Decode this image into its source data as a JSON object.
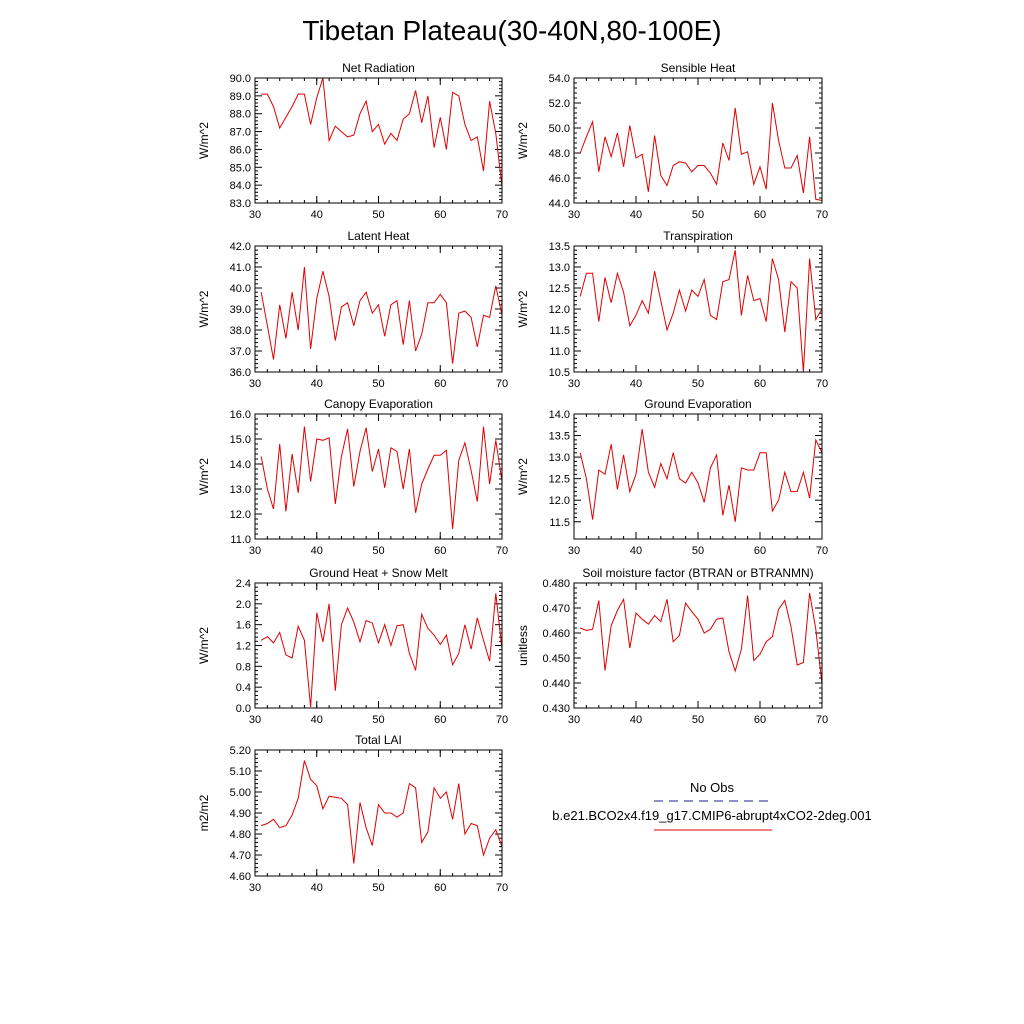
{
  "title": "Tibetan Plateau(30-40N,80-100E)",
  "legend": {
    "entries": [
      {
        "label": "No Obs",
        "color": "#1f1f8f",
        "style": "dashed"
      },
      {
        "label": "b.e21.BCO2x4.f19_g17.CMIP6-abrupt4xCO2-2deg.001",
        "color": "#e00000",
        "style": "solid"
      }
    ]
  },
  "chart_data": [
    {
      "type": "line",
      "title": "Net Radiation",
      "ylabel": "W/m^2",
      "xlim": [
        30,
        70
      ],
      "ylim": [
        83,
        90
      ],
      "xticks": [
        30,
        40,
        50,
        60,
        70
      ],
      "yticks": [
        "83.0",
        "84.0",
        "85.0",
        "86.0",
        "87.0",
        "88.0",
        "89.0",
        "90.0"
      ],
      "series": [
        {
          "color": "#e00000",
          "x": [
            31,
            32,
            33,
            34,
            35,
            36,
            37,
            38,
            39,
            40,
            41,
            42,
            43,
            44,
            45,
            46,
            47,
            48,
            49,
            50,
            51,
            52,
            53,
            54,
            55,
            56,
            57,
            58,
            59,
            60,
            61,
            62,
            63,
            64,
            65,
            66,
            67,
            68,
            69,
            70
          ],
          "values": [
            89.1,
            89.1,
            88.4,
            87.2,
            87.8,
            88.4,
            89.1,
            89.1,
            87.4,
            88.9,
            90.0,
            86.5,
            87.3,
            87.0,
            86.7,
            86.8,
            88.0,
            88.7,
            87.0,
            87.4,
            86.3,
            86.9,
            86.5,
            87.7,
            88.0,
            89.3,
            87.5,
            89.0,
            86.1,
            87.8,
            86.0,
            89.2,
            89.0,
            87.4,
            86.5,
            86.7,
            84.8,
            88.7,
            86.9,
            83.9
          ]
        }
      ]
    },
    {
      "type": "line",
      "title": "Sensible Heat",
      "ylabel": "W/m^2",
      "xlim": [
        30,
        70
      ],
      "ylim": [
        44,
        54
      ],
      "xticks": [
        30,
        40,
        50,
        60,
        70
      ],
      "yticks": [
        "44.0",
        "46.0",
        "48.0",
        "50.0",
        "52.0",
        "54.0"
      ],
      "series": [
        {
          "color": "#e00000",
          "x": [
            31,
            32,
            33,
            34,
            35,
            36,
            37,
            38,
            39,
            40,
            41,
            42,
            43,
            44,
            45,
            46,
            47,
            48,
            49,
            50,
            51,
            52,
            53,
            54,
            55,
            56,
            57,
            58,
            59,
            60,
            61,
            62,
            63,
            64,
            65,
            66,
            67,
            68,
            69,
            70
          ],
          "values": [
            48.0,
            49.3,
            50.5,
            46.5,
            49.3,
            47.7,
            49.6,
            46.9,
            50.2,
            47.6,
            47.9,
            44.9,
            49.4,
            46.2,
            45.4,
            47.0,
            47.3,
            47.2,
            46.5,
            47.0,
            47.0,
            46.4,
            45.5,
            48.8,
            47.4,
            51.6,
            47.9,
            48.1,
            45.5,
            46.9,
            45.1,
            52.0,
            49.0,
            46.8,
            46.8,
            47.8,
            44.8,
            49.3,
            44.3,
            44.2
          ]
        }
      ]
    },
    {
      "type": "line",
      "title": "Latent Heat",
      "ylabel": "W/m^2",
      "xlim": [
        30,
        70
      ],
      "ylim": [
        36,
        42
      ],
      "xticks": [
        30,
        40,
        50,
        60,
        70
      ],
      "yticks": [
        "36.0",
        "37.0",
        "38.0",
        "39.0",
        "40.0",
        "41.0",
        "42.0"
      ],
      "series": [
        {
          "color": "#e00000",
          "x": [
            31,
            32,
            33,
            34,
            35,
            36,
            37,
            38,
            39,
            40,
            41,
            42,
            43,
            44,
            45,
            46,
            47,
            48,
            49,
            50,
            51,
            52,
            53,
            54,
            55,
            56,
            57,
            58,
            59,
            60,
            61,
            62,
            63,
            64,
            65,
            66,
            67,
            68,
            69,
            70
          ],
          "values": [
            39.8,
            38.2,
            36.6,
            39.2,
            37.6,
            39.8,
            38.0,
            41.0,
            37.1,
            39.5,
            40.8,
            39.6,
            37.5,
            39.1,
            39.3,
            38.2,
            39.4,
            39.8,
            38.8,
            39.2,
            37.7,
            39.2,
            39.4,
            37.3,
            39.4,
            37.0,
            37.8,
            39.3,
            39.3,
            39.7,
            39.3,
            36.4,
            38.8,
            38.9,
            38.6,
            37.2,
            38.7,
            38.6,
            40.1,
            38.7
          ]
        }
      ]
    },
    {
      "type": "line",
      "title": "Transpiration",
      "ylabel": "W/m^2",
      "xlim": [
        30,
        70
      ],
      "ylim": [
        10.5,
        13.5
      ],
      "xticks": [
        30,
        40,
        50,
        60,
        70
      ],
      "yticks": [
        "10.5",
        "11.0",
        "11.5",
        "12.0",
        "12.5",
        "13.0",
        "13.5"
      ],
      "series": [
        {
          "color": "#e00000",
          "x": [
            31,
            32,
            33,
            34,
            35,
            36,
            37,
            38,
            39,
            40,
            41,
            42,
            43,
            44,
            45,
            46,
            47,
            48,
            49,
            50,
            51,
            52,
            53,
            54,
            55,
            56,
            57,
            58,
            59,
            60,
            61,
            62,
            63,
            64,
            65,
            66,
            67,
            68,
            69,
            70
          ],
          "values": [
            12.3,
            12.85,
            12.85,
            11.7,
            12.75,
            12.15,
            12.85,
            12.4,
            11.6,
            11.85,
            12.2,
            11.9,
            12.9,
            12.2,
            11.5,
            11.9,
            12.45,
            11.95,
            12.45,
            12.3,
            12.7,
            11.85,
            11.75,
            12.65,
            12.7,
            13.4,
            11.85,
            12.8,
            12.2,
            12.25,
            11.7,
            13.2,
            12.7,
            11.45,
            12.65,
            12.5,
            10.5,
            13.2,
            11.75,
            12.0
          ]
        }
      ]
    },
    {
      "type": "line",
      "title": "Canopy Evaporation",
      "ylabel": "W/m^2",
      "xlim": [
        30,
        70
      ],
      "ylim": [
        11,
        16
      ],
      "xticks": [
        30,
        40,
        50,
        60,
        70
      ],
      "yticks": [
        "11.0",
        "12.0",
        "13.0",
        "14.0",
        "15.0",
        "16.0"
      ],
      "series": [
        {
          "color": "#e00000",
          "x": [
            31,
            32,
            33,
            34,
            35,
            36,
            37,
            38,
            39,
            40,
            41,
            42,
            43,
            44,
            45,
            46,
            47,
            48,
            49,
            50,
            51,
            52,
            53,
            54,
            55,
            56,
            57,
            58,
            59,
            60,
            61,
            62,
            63,
            64,
            65,
            66,
            67,
            68,
            69,
            70
          ],
          "values": [
            14.3,
            13.0,
            12.2,
            14.8,
            12.1,
            14.4,
            12.85,
            15.5,
            13.3,
            15.0,
            14.95,
            15.05,
            12.4,
            14.3,
            15.4,
            13.1,
            14.5,
            15.45,
            13.7,
            14.6,
            13.05,
            14.65,
            14.5,
            13.0,
            14.6,
            12.05,
            13.2,
            13.8,
            14.35,
            14.35,
            14.55,
            11.4,
            14.15,
            14.85,
            13.75,
            12.5,
            15.5,
            13.2,
            14.95,
            13.3
          ]
        }
      ]
    },
    {
      "type": "line",
      "title": "Ground Evaporation",
      "ylabel": "W/m^2",
      "xlim": [
        30,
        70
      ],
      "ylim": [
        11.1,
        14.0
      ],
      "xticks": [
        30,
        40,
        50,
        60,
        70
      ],
      "yticks": [
        "11.5",
        "12.0",
        "12.5",
        "13.0",
        "13.5",
        "14.0"
      ],
      "series": [
        {
          "color": "#e00000",
          "x": [
            31,
            32,
            33,
            34,
            35,
            36,
            37,
            38,
            39,
            40,
            41,
            42,
            43,
            44,
            45,
            46,
            47,
            48,
            49,
            50,
            51,
            52,
            53,
            54,
            55,
            56,
            57,
            58,
            59,
            60,
            61,
            62,
            63,
            64,
            65,
            66,
            67,
            68,
            69,
            70
          ],
          "values": [
            13.1,
            12.5,
            11.55,
            12.7,
            12.6,
            13.3,
            12.25,
            13.05,
            12.2,
            12.6,
            13.65,
            12.65,
            12.3,
            12.85,
            12.5,
            13.1,
            12.5,
            12.4,
            12.65,
            12.4,
            11.95,
            12.75,
            13.05,
            11.65,
            12.35,
            11.5,
            12.75,
            12.7,
            12.7,
            13.1,
            13.1,
            11.75,
            12.0,
            12.65,
            12.2,
            12.2,
            12.65,
            12.05,
            13.4,
            13.1
          ]
        }
      ]
    },
    {
      "type": "line",
      "title": "Ground Heat + Snow Melt",
      "ylabel": "W/m^2",
      "xlim": [
        30,
        70
      ],
      "ylim": [
        0,
        2.4
      ],
      "xticks": [
        30,
        40,
        50,
        60,
        70
      ],
      "yticks": [
        "0.0",
        "0.4",
        "0.8",
        "1.2",
        "1.6",
        "2.0",
        "2.4"
      ],
      "series": [
        {
          "color": "#e00000",
          "x": [
            31,
            32,
            33,
            34,
            35,
            36,
            37,
            38,
            39,
            40,
            41,
            42,
            43,
            44,
            45,
            46,
            47,
            48,
            49,
            50,
            51,
            52,
            53,
            54,
            55,
            56,
            57,
            58,
            59,
            60,
            61,
            62,
            63,
            64,
            65,
            66,
            67,
            68,
            69,
            70
          ],
          "values": [
            1.3,
            1.37,
            1.25,
            1.45,
            1.02,
            0.96,
            1.57,
            1.3,
            0.02,
            1.83,
            1.27,
            2.0,
            0.33,
            1.6,
            1.92,
            1.65,
            1.27,
            1.68,
            1.63,
            1.25,
            1.6,
            1.2,
            1.58,
            1.6,
            1.05,
            0.72,
            1.8,
            1.53,
            1.4,
            1.22,
            1.4,
            0.83,
            1.05,
            1.6,
            1.13,
            1.73,
            1.3,
            0.9,
            2.2,
            1.13
          ]
        }
      ]
    },
    {
      "type": "line",
      "title": "Soil moisture factor (BTRAN or BTRANMN)",
      "ylabel": "unitless",
      "xlim": [
        30,
        70
      ],
      "ylim": [
        0.43,
        0.48
      ],
      "xticks": [
        30,
        40,
        50,
        60,
        70
      ],
      "yticks": [
        "0.430",
        "0.440",
        "0.450",
        "0.460",
        "0.470",
        "0.480"
      ],
      "series": [
        {
          "color": "#e00000",
          "x": [
            31,
            32,
            33,
            34,
            35,
            36,
            37,
            38,
            39,
            40,
            41,
            42,
            43,
            44,
            45,
            46,
            47,
            48,
            49,
            50,
            51,
            52,
            53,
            54,
            55,
            56,
            57,
            58,
            59,
            60,
            61,
            62,
            63,
            64,
            65,
            66,
            67,
            68,
            69,
            70
          ],
          "values": [
            0.462,
            0.461,
            0.4615,
            0.473,
            0.445,
            0.463,
            0.469,
            0.4735,
            0.454,
            0.468,
            0.4655,
            0.4635,
            0.467,
            0.4645,
            0.4735,
            0.4565,
            0.459,
            0.472,
            0.4685,
            0.4655,
            0.46,
            0.4615,
            0.4655,
            0.466,
            0.4525,
            0.4448,
            0.4535,
            0.475,
            0.449,
            0.4515,
            0.4565,
            0.4585,
            0.4695,
            0.473,
            0.4625,
            0.4472,
            0.4482,
            0.476,
            0.4615,
            0.4395
          ]
        }
      ]
    },
    {
      "type": "line",
      "title": "Total LAI",
      "ylabel": "m2/m2",
      "xlim": [
        30,
        70
      ],
      "ylim": [
        4.6,
        5.2
      ],
      "xticks": [
        30,
        40,
        50,
        60,
        70
      ],
      "yticks": [
        "4.60",
        "4.70",
        "4.80",
        "4.90",
        "5.00",
        "5.10",
        "5.20"
      ],
      "series": [
        {
          "color": "#e00000",
          "x": [
            31,
            32,
            33,
            34,
            35,
            36,
            37,
            38,
            39,
            40,
            41,
            42,
            43,
            44,
            45,
            46,
            47,
            48,
            49,
            50,
            51,
            52,
            53,
            54,
            55,
            56,
            57,
            58,
            59,
            60,
            61,
            62,
            63,
            64,
            65,
            66,
            67,
            68,
            69,
            70
          ],
          "values": [
            4.84,
            4.85,
            4.87,
            4.83,
            4.84,
            4.89,
            4.97,
            5.15,
            5.06,
            5.03,
            4.92,
            4.98,
            4.975,
            4.97,
            4.94,
            4.66,
            4.95,
            4.83,
            4.745,
            4.94,
            4.9,
            4.9,
            4.88,
            4.9,
            5.04,
            5.02,
            4.76,
            4.81,
            5.02,
            4.97,
            5.0,
            4.87,
            5.04,
            4.8,
            4.85,
            4.84,
            4.7,
            4.78,
            4.82,
            4.74
          ]
        }
      ]
    }
  ]
}
